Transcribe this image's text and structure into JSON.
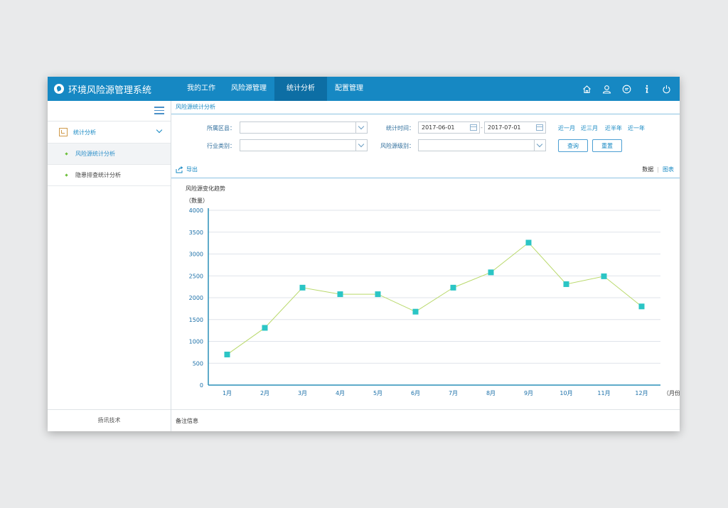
{
  "app": {
    "title": "环境风险源管理系统"
  },
  "nav": {
    "items": [
      "我的工作",
      "风险源管理",
      "统计分析",
      "配置管理"
    ],
    "active": 2
  },
  "top_icons": [
    "home-icon",
    "user-icon",
    "message-icon",
    "info-icon",
    "power-icon"
  ],
  "sidebar": {
    "group": {
      "label": "统计分析",
      "icon": "chart-report-icon"
    },
    "items": [
      {
        "label": "风险源统计分析",
        "active": true
      },
      {
        "label": "隐患排查统计分析",
        "active": false
      }
    ],
    "footer": "扬讯技术"
  },
  "breadcrumb": "风险源统计分析",
  "filters": {
    "region_label": "所属区县：",
    "region_value": "",
    "industry_label": "行业类别：",
    "industry_value": "",
    "time_label": "统计时间：",
    "date_from": "2017-06-01",
    "date_sep": "-",
    "date_to": "2017-07-01",
    "level_label": "风险源级别：",
    "level_value": "",
    "quick_ranges": [
      "近一月",
      "近三月",
      "近半年",
      "近一年"
    ],
    "query_button": "查询",
    "reset_button": "重置"
  },
  "toolbar": {
    "export_label": "导出",
    "tab_data": "数据",
    "tab_chart": "图表",
    "tab_divider": "|"
  },
  "chart_title": "风险源变化趋势",
  "chart_unit": "（数量）",
  "chart_data": {
    "type": "line",
    "x": [
      "1月",
      "2月",
      "3月",
      "4月",
      "5月",
      "6月",
      "7月",
      "8月",
      "9月",
      "10月",
      "11月",
      "12月"
    ],
    "values": [
      700,
      1310,
      2230,
      2080,
      2080,
      1680,
      2230,
      2580,
      3260,
      2310,
      2490,
      1800
    ],
    "xlabel": "（月份）",
    "ylabel": "（数量）",
    "ylim": [
      0,
      4000
    ],
    "yticks": [
      0,
      500,
      1000,
      1500,
      2000,
      2500,
      3000,
      3500,
      4000
    ],
    "grid": true,
    "line_color": "#b9d96b",
    "marker_color": "#2bc5c5"
  },
  "note": {
    "label": "备注信息"
  }
}
